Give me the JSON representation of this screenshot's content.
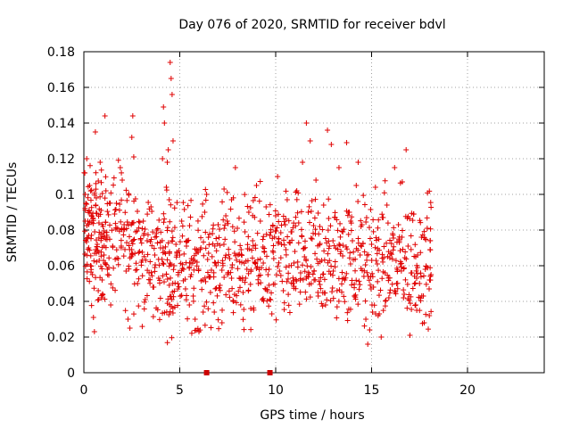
{
  "chart_data": {
    "type": "scatter",
    "title": "Day 076 of 2020, SRMTID for receiver bdvl",
    "xlabel": "GPS time / hours",
    "ylabel": "SRMTID / TECUs",
    "xlim": [
      0,
      24
    ],
    "ylim": [
      0,
      0.18
    ],
    "xticks": [
      0,
      5,
      10,
      15,
      20
    ],
    "xtick_labels": [
      "0",
      "5",
      "10",
      "15",
      "20"
    ],
    "yticks": [
      0,
      0.02,
      0.04,
      0.06,
      0.08,
      0.1,
      0.12,
      0.14,
      0.16,
      0.18
    ],
    "ytick_labels": [
      "0",
      "0.02",
      "0.04",
      "0.06",
      "0.08",
      "0.1",
      "0.12",
      "0.14",
      "0.16",
      "0.18"
    ],
    "grid": true,
    "marker": "+",
    "color": "#e00000",
    "series": [
      {
        "name": "SRMTID",
        "points": [
          [
            0.05,
            0.112
          ],
          [
            0.1,
            0.095
          ],
          [
            0.15,
            0.12
          ],
          [
            0.2,
            0.085
          ],
          [
            0.25,
            0.07
          ],
          [
            0.3,
            0.105
          ],
          [
            0.35,
            0.06
          ],
          [
            0.4,
            0.088
          ],
          [
            0.45,
            0.055
          ],
          [
            0.5,
            0.031
          ],
          [
            0.55,
            0.023
          ],
          [
            0.6,
            0.135
          ],
          [
            0.65,
            0.098
          ],
          [
            0.7,
            0.072
          ],
          [
            0.75,
            0.046
          ],
          [
            0.8,
            0.063
          ],
          [
            0.85,
            0.118
          ],
          [
            0.9,
            0.091
          ],
          [
            0.95,
            0.052
          ],
          [
            1.0,
            0.082
          ],
          [
            1.05,
            0.066
          ],
          [
            1.1,
            0.144
          ],
          [
            1.15,
            0.102
          ],
          [
            1.2,
            0.076
          ],
          [
            1.3,
            0.059
          ],
          [
            1.4,
            0.038
          ],
          [
            1.5,
            0.071
          ],
          [
            1.6,
            0.089
          ],
          [
            1.7,
            0.095
          ],
          [
            1.8,
            0.064
          ],
          [
            1.9,
            0.115
          ],
          [
            2.0,
            0.108
          ],
          [
            2.1,
            0.083
          ],
          [
            2.2,
            0.057
          ],
          [
            2.3,
            0.03
          ],
          [
            2.4,
            0.025
          ],
          [
            2.5,
            0.132
          ],
          [
            2.55,
            0.144
          ],
          [
            2.6,
            0.121
          ],
          [
            2.7,
            0.079
          ],
          [
            2.8,
            0.05
          ],
          [
            2.9,
            0.068
          ],
          [
            3.0,
            0.062
          ],
          [
            3.1,
            0.085
          ],
          [
            3.2,
            0.041
          ],
          [
            3.3,
            0.074
          ],
          [
            3.4,
            0.056
          ],
          [
            3.5,
            0.093
          ],
          [
            3.6,
            0.048
          ],
          [
            3.7,
            0.066
          ],
          [
            3.8,
            0.08
          ],
          [
            3.9,
            0.053
          ],
          [
            4.0,
            0.07
          ],
          [
            4.1,
            0.12
          ],
          [
            4.15,
            0.149
          ],
          [
            4.2,
            0.14
          ],
          [
            4.3,
            0.104
          ],
          [
            4.35,
            0.118
          ],
          [
            4.4,
            0.125
          ],
          [
            4.45,
            0.097
          ],
          [
            4.5,
            0.174
          ],
          [
            4.55,
            0.165
          ],
          [
            4.6,
            0.156
          ],
          [
            4.65,
            0.13
          ],
          [
            4.7,
            0.06
          ],
          [
            4.8,
            0.072
          ],
          [
            4.9,
            0.05
          ],
          [
            5.0,
            0.066
          ],
          [
            5.1,
            0.085
          ],
          [
            5.2,
            0.058
          ],
          [
            5.3,
            0.047
          ],
          [
            5.4,
            0.074
          ],
          [
            5.5,
            0.038
          ],
          [
            5.6,
            0.055
          ],
          [
            5.7,
            0.043
          ],
          [
            5.8,
            0.03
          ],
          [
            5.9,
            0.062
          ],
          [
            6.0,
            0.023
          ],
          [
            6.1,
            0.07
          ],
          [
            6.2,
            0.052
          ],
          [
            6.3,
            0.09
          ],
          [
            6.4,
            0.1
          ],
          [
            6.5,
            0.067
          ],
          [
            6.6,
            0.045
          ],
          [
            6.7,
            0.078
          ],
          [
            6.8,
            0.034
          ],
          [
            6.9,
            0.06
          ],
          [
            7.0,
            0.083
          ],
          [
            7.1,
            0.049
          ],
          [
            7.2,
            0.028
          ],
          [
            7.3,
            0.072
          ],
          [
            7.4,
            0.088
          ],
          [
            7.5,
            0.056
          ],
          [
            7.6,
            0.064
          ],
          [
            7.7,
            0.097
          ],
          [
            7.8,
            0.04
          ],
          [
            7.9,
            0.115
          ],
          [
            8.0,
            0.081
          ],
          [
            8.1,
            0.053
          ],
          [
            8.2,
            0.069
          ],
          [
            8.3,
            0.045
          ],
          [
            8.4,
            0.079
          ],
          [
            8.5,
            0.058
          ],
          [
            8.6,
            0.09
          ],
          [
            8.7,
            0.036
          ],
          [
            8.8,
            0.074
          ],
          [
            8.9,
            0.062
          ],
          [
            9.0,
            0.105
          ],
          [
            9.1,
            0.05
          ],
          [
            9.2,
            0.085
          ],
          [
            9.3,
            0.041
          ],
          [
            9.4,
            0.068
          ],
          [
            9.5,
            0.093
          ],
          [
            9.6,
            0.055
          ],
          [
            9.7,
            0.077
          ],
          [
            9.8,
            0.033
          ],
          [
            9.9,
            0.064
          ],
          [
            10.0,
            0.088
          ],
          [
            10.1,
            0.11
          ],
          [
            10.2,
            0.057
          ],
          [
            10.3,
            0.072
          ],
          [
            10.4,
            0.046
          ],
          [
            10.5,
            0.083
          ],
          [
            10.6,
            0.097
          ],
          [
            10.7,
            0.06
          ],
          [
            10.8,
            0.079
          ],
          [
            10.9,
            0.05
          ],
          [
            11.0,
            0.068
          ],
          [
            11.1,
            0.102
          ],
          [
            11.2,
            0.084
          ],
          [
            11.3,
            0.056
          ],
          [
            11.4,
            0.118
          ],
          [
            11.5,
            0.065
          ],
          [
            11.6,
            0.14
          ],
          [
            11.7,
            0.09
          ],
          [
            11.8,
            0.13
          ],
          [
            11.9,
            0.075
          ],
          [
            12.0,
            0.052
          ],
          [
            12.1,
            0.108
          ],
          [
            12.2,
            0.045
          ],
          [
            12.3,
            0.082
          ],
          [
            12.4,
            0.063
          ],
          [
            12.5,
            0.094
          ],
          [
            12.6,
            0.038
          ],
          [
            12.7,
            0.136
          ],
          [
            12.8,
            0.071
          ],
          [
            12.9,
            0.128
          ],
          [
            13.0,
            0.057
          ],
          [
            13.1,
            0.087
          ],
          [
            13.2,
            0.046
          ],
          [
            13.3,
            0.115
          ],
          [
            13.4,
            0.068
          ],
          [
            13.5,
            0.079
          ],
          [
            13.6,
            0.052
          ],
          [
            13.7,
            0.129
          ],
          [
            13.8,
            0.09
          ],
          [
            13.9,
            0.061
          ],
          [
            14.0,
            0.074
          ],
          [
            14.1,
            0.043
          ],
          [
            14.2,
            0.105
          ],
          [
            14.3,
            0.118
          ],
          [
            14.4,
            0.066
          ],
          [
            14.5,
            0.083
          ],
          [
            14.6,
            0.054
          ],
          [
            14.7,
            0.03
          ],
          [
            14.8,
            0.016
          ],
          [
            14.9,
            0.024
          ],
          [
            15.0,
            0.072
          ],
          [
            15.1,
            0.048
          ],
          [
            15.2,
            0.104
          ],
          [
            15.3,
            0.061
          ],
          [
            15.4,
            0.033
          ],
          [
            15.5,
            0.02
          ],
          [
            15.6,
            0.087
          ],
          [
            15.7,
            0.056
          ],
          [
            15.8,
            0.094
          ],
          [
            15.9,
            0.042
          ],
          [
            16.0,
            0.067
          ],
          [
            16.1,
            0.078
          ],
          [
            16.2,
            0.115
          ],
          [
            16.3,
            0.05
          ],
          [
            16.4,
            0.083
          ],
          [
            16.5,
            0.061
          ],
          [
            16.6,
            0.107
          ],
          [
            16.7,
            0.044
          ],
          [
            16.8,
            0.125
          ],
          [
            16.9,
            0.071
          ],
          [
            17.0,
            0.021
          ],
          [
            17.1,
            0.056
          ],
          [
            17.2,
            0.089
          ],
          [
            17.3,
            0.038
          ],
          [
            17.4,
            0.066
          ],
          [
            17.5,
            0.05
          ],
          [
            17.6,
            0.076
          ],
          [
            17.7,
            0.043
          ],
          [
            17.8,
            0.058
          ],
          [
            17.9,
            0.081
          ],
          [
            18.0,
            0.047
          ],
          [
            18.05,
            0.069
          ],
          [
            18.1,
            0.055
          ]
        ]
      }
    ],
    "markers_on_axis": [
      6.4,
      9.7
    ]
  }
}
